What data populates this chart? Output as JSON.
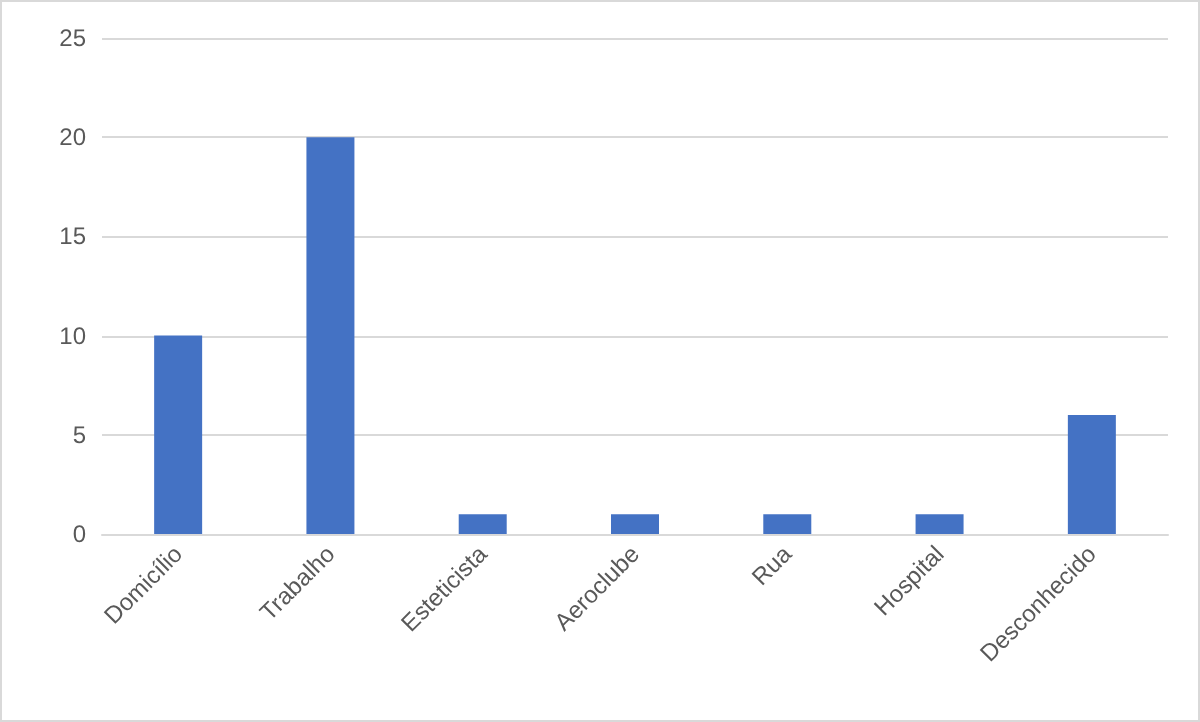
{
  "chart_data": {
    "type": "bar",
    "categories": [
      "Domicílio",
      "Trabalho",
      "Esteticista",
      "Aeroclube",
      "Rua",
      "Hospital",
      "Desconhecido"
    ],
    "values": [
      10,
      20,
      1,
      1,
      1,
      1,
      6
    ],
    "color": "#4472c4",
    "ylim": [
      0,
      25
    ],
    "yticks": [
      0,
      5,
      10,
      15,
      20,
      25
    ],
    "grid": "y"
  }
}
